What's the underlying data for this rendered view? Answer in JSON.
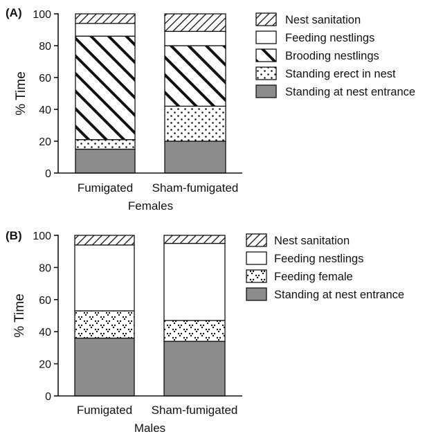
{
  "chart_data": [
    {
      "panel": "(A)",
      "type": "bar",
      "stacked": true,
      "xlabel": "Females",
      "ylabel": "% Time",
      "ylim": [
        0,
        100
      ],
      "yticks": [
        "0",
        "20",
        "40",
        "60",
        "80",
        "100"
      ],
      "categories": [
        "Fumigated",
        "Sham-fumigated"
      ],
      "series": [
        {
          "name": "Standing at nest entrance",
          "pattern": "solid-gray",
          "values": [
            15,
            20
          ]
        },
        {
          "name": "Standing erect in nest",
          "pattern": "dots",
          "values": [
            6,
            22
          ]
        },
        {
          "name": "Brooding nestlings",
          "pattern": "thick-diagonal",
          "values": [
            65,
            38
          ]
        },
        {
          "name": "Feeding nestlings",
          "pattern": "white",
          "values": [
            8,
            9
          ]
        },
        {
          "name": "Nest sanitation",
          "pattern": "thin-diagonal",
          "values": [
            6,
            11
          ]
        }
      ],
      "legend_order": [
        "Nest sanitation",
        "Feeding nestlings",
        "Brooding nestlings",
        "Standing erect in nest",
        "Standing at nest entrance"
      ],
      "legend_position": "right",
      "grid": false
    },
    {
      "panel": "(B)",
      "type": "bar",
      "stacked": true,
      "xlabel": "Males",
      "ylabel": "% Time",
      "ylim": [
        0,
        100
      ],
      "yticks": [
        "0",
        "20",
        "40",
        "60",
        "80",
        "100"
      ],
      "categories": [
        "Fumigated",
        "Sham-fumigated"
      ],
      "series": [
        {
          "name": "Standing at nest entrance",
          "pattern": "solid-gray",
          "values": [
            36,
            34
          ]
        },
        {
          "name": "Feeding female",
          "pattern": "v-dots",
          "values": [
            17,
            13
          ]
        },
        {
          "name": "Feeding nestlings",
          "pattern": "white",
          "values": [
            41,
            48
          ]
        },
        {
          "name": "Nest sanitation",
          "pattern": "thin-diagonal",
          "values": [
            6,
            5
          ]
        }
      ],
      "legend_order": [
        "Nest sanitation",
        "Feeding nestlings",
        "Feeding female",
        "Standing at nest entrance"
      ],
      "legend_position": "right",
      "grid": false
    }
  ],
  "colors": {
    "solid_gray": "#8c8c8c",
    "stroke": "#111111",
    "background": "#ffffff"
  }
}
